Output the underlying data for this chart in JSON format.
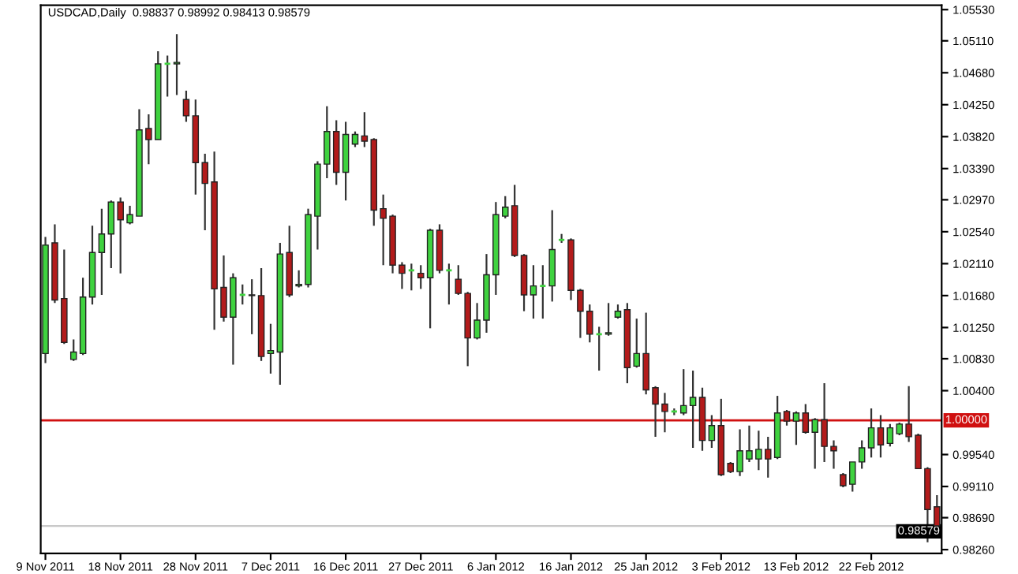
{
  "chart_data": {
    "type": "candlestick",
    "title": "USDCAD,Daily  0.98837 0.98992 0.98413 0.98579",
    "categories": [
      "9 Nov 2011",
      null,
      null,
      null,
      null,
      null,
      null,
      null,
      "18 Nov 2011",
      null,
      null,
      null,
      null,
      null,
      null,
      null,
      "28 Nov 2011",
      null,
      null,
      null,
      null,
      null,
      null,
      null,
      "7 Dec 2011",
      null,
      null,
      null,
      null,
      null,
      null,
      null,
      "16 Dec 2011",
      null,
      null,
      null,
      null,
      null,
      null,
      null,
      "27 Dec 2011",
      null,
      null,
      null,
      null,
      null,
      null,
      null,
      "6 Jan 2012",
      null,
      null,
      null,
      null,
      null,
      null,
      null,
      "16 Jan 2012",
      null,
      null,
      null,
      null,
      null,
      null,
      null,
      "25 Jan 2012",
      null,
      null,
      null,
      null,
      null,
      null,
      null,
      "3 Feb 2012",
      null,
      null,
      null,
      null,
      null,
      null,
      null,
      "13 Feb 2012",
      null,
      null,
      null,
      null,
      null,
      null,
      null,
      "22 Feb 2012",
      null,
      null,
      null,
      null,
      null,
      null,
      null
    ],
    "ohlc": [
      [
        1.009,
        1.0247,
        1.0077,
        1.0236
      ],
      [
        1.0239,
        1.0264,
        1.0158,
        1.0162
      ],
      [
        1.0164,
        1.023,
        1.0103,
        1.0105
      ],
      [
        1.0082,
        1.0109,
        1.008,
        1.0092
      ],
      [
        1.009,
        1.0192,
        1.0088,
        1.0166
      ],
      [
        1.0166,
        1.0262,
        1.0156,
        1.0226
      ],
      [
        1.0226,
        1.0285,
        1.0169,
        1.0251
      ],
      [
        1.0251,
        1.0296,
        1.0205,
        1.0294
      ],
      [
        1.0294,
        1.03,
        1.0198,
        1.027
      ],
      [
        1.0266,
        1.0289,
        1.0264,
        1.0277
      ],
      [
        1.0275,
        1.0419,
        1.0275,
        1.0391
      ],
      [
        1.0393,
        1.0412,
        1.0345,
        1.0378
      ],
      [
        1.0378,
        1.0497,
        1.0378,
        1.048
      ],
      [
        1.048,
        1.0491,
        1.0436,
        1.048
      ],
      [
        1.048,
        1.052,
        1.0438,
        1.0482
      ],
      [
        1.0432,
        1.0444,
        1.0402,
        1.041
      ],
      [
        1.041,
        1.0432,
        1.0304,
        1.0347
      ],
      [
        1.0347,
        1.0359,
        1.0256,
        1.0319
      ],
      [
        1.0321,
        1.0362,
        1.0122,
        1.0177
      ],
      [
        1.0179,
        1.0222,
        1.0133,
        1.0139
      ],
      [
        1.0139,
        1.0198,
        1.0075,
        1.0192
      ],
      [
        1.0169,
        1.0183,
        1.0156,
        1.0169
      ],
      [
        1.0169,
        1.019,
        1.0116,
        1.0168
      ],
      [
        1.0168,
        1.0205,
        1.008,
        1.0086
      ],
      [
        1.009,
        1.013,
        1.0063,
        1.0094
      ],
      [
        1.0092,
        1.0239,
        1.0048,
        1.0224
      ],
      [
        1.0226,
        1.0262,
        1.0166,
        1.0169
      ],
      [
        1.0181,
        1.0202,
        1.0179,
        1.0183
      ],
      [
        1.0183,
        1.0285,
        1.0179,
        1.0277
      ],
      [
        1.0275,
        1.0349,
        1.023,
        1.0345
      ],
      [
        1.0345,
        1.0423,
        1.0326,
        1.0389
      ],
      [
        1.0389,
        1.0404,
        1.0317,
        1.0334
      ],
      [
        1.0334,
        1.0402,
        1.0296,
        1.0385
      ],
      [
        1.0372,
        1.0389,
        1.0368,
        1.0385
      ],
      [
        1.0383,
        1.0415,
        1.0368,
        1.0376
      ],
      [
        1.0378,
        1.038,
        1.0262,
        1.0283
      ],
      [
        1.0285,
        1.0304,
        1.0209,
        1.0272
      ],
      [
        1.0275,
        1.0277,
        1.0198,
        1.0209
      ],
      [
        1.0209,
        1.0213,
        1.0177,
        1.0198
      ],
      [
        1.0202,
        1.0211,
        1.0175,
        1.0202
      ],
      [
        1.0198,
        1.0209,
        1.0177,
        1.0192
      ],
      [
        1.0192,
        1.0258,
        1.0124,
        1.0256
      ],
      [
        1.0256,
        1.0264,
        1.0198,
        1.0202
      ],
      [
        1.0202,
        1.0211,
        1.0156,
        1.0202
      ],
      [
        1.019,
        1.0209,
        1.0169,
        1.0171
      ],
      [
        1.0171,
        1.0173,
        1.0073,
        1.0111
      ],
      [
        1.0111,
        1.0158,
        1.0109,
        1.0135
      ],
      [
        1.0135,
        1.0224,
        1.0118,
        1.0196
      ],
      [
        1.0196,
        1.0294,
        1.0169,
        1.0277
      ],
      [
        1.0275,
        1.0302,
        1.0272,
        1.0287
      ],
      [
        1.0289,
        1.0317,
        1.022,
        1.0222
      ],
      [
        1.0222,
        1.0224,
        1.0147,
        1.0169
      ],
      [
        1.0169,
        1.0209,
        1.0137,
        1.0181
      ],
      [
        1.0181,
        1.0209,
        1.0137,
        1.0181
      ],
      [
        1.0181,
        1.0283,
        1.016,
        1.023
      ],
      [
        1.0243,
        1.0251,
        1.0239,
        1.0243
      ],
      [
        1.0243,
        1.0245,
        1.0162,
        1.0175
      ],
      [
        1.0175,
        1.0177,
        1.0111,
        1.0147
      ],
      [
        1.0147,
        1.0156,
        1.0105,
        1.0116
      ],
      [
        1.0116,
        1.0126,
        1.0067,
        1.0116
      ],
      [
        1.0116,
        1.0158,
        1.0114,
        1.0118
      ],
      [
        1.0139,
        1.0156,
        1.0137,
        1.0147
      ],
      [
        1.0149,
        1.0158,
        1.005,
        1.0071
      ],
      [
        1.0073,
        1.0137,
        1.0071,
        1.009
      ],
      [
        1.009,
        1.0145,
        1.0035,
        1.0041
      ],
      [
        1.0044,
        1.0046,
        0.9978,
        1.0022
      ],
      [
        1.0022,
        1.0037,
        0.9984,
        1.0012
      ],
      [
        1.0012,
        1.0016,
        1.0007,
        1.0012
      ],
      [
        1.001,
        1.0069,
        1.0007,
        1.002
      ],
      [
        1.002,
        1.0067,
        0.9963,
        1.0031
      ],
      [
        1.0031,
        1.0044,
        0.9959,
        0.9973
      ],
      [
        0.9973,
        1.0007,
        0.9963,
        0.9993
      ],
      [
        0.9993,
        1.0029,
        0.9925,
        0.9927
      ],
      [
        0.9942,
        0.9944,
        0.9929,
        0.9931
      ],
      [
        0.9931,
        0.9988,
        0.9925,
        0.9959
      ],
      [
        0.9948,
        0.9993,
        0.9944,
        0.9959
      ],
      [
        0.9948,
        0.9986,
        0.9933,
        0.9961
      ],
      [
        0.9961,
        0.9978,
        0.9923,
        0.9948
      ],
      [
        0.995,
        1.0033,
        0.9948,
        1.001
      ],
      [
        1.0012,
        1.0014,
        0.9993,
        0.9999
      ],
      [
        0.9999,
        1.0012,
        0.9967,
        1.001
      ],
      [
        1.001,
        1.0022,
        0.9982,
        0.9984
      ],
      [
        0.9984,
        1.0003,
        0.9935,
        1.0001
      ],
      [
        1.0001,
        1.005,
        0.9944,
        0.9965
      ],
      [
        0.9965,
        0.9973,
        0.9935,
        0.9959
      ],
      [
        0.9927,
        0.9929,
        0.991,
        0.9912
      ],
      [
        0.9914,
        0.9944,
        0.9904,
        0.9944
      ],
      [
        0.9944,
        0.9973,
        0.9935,
        0.9963
      ],
      [
        0.9963,
        1.0016,
        0.995,
        0.999
      ],
      [
        0.999,
        1.0007,
        0.995,
        0.9967
      ],
      [
        0.9969,
        0.9995,
        0.9965,
        0.999
      ],
      [
        0.9982,
        0.9997,
        0.998,
        0.9995
      ],
      [
        0.9995,
        1.0046,
        0.9971,
        0.9978
      ],
      [
        0.998,
        0.9982,
        0.9935,
        0.9935
      ],
      [
        0.9935,
        0.9937,
        0.9836,
        0.988
      ],
      [
        0.98837,
        0.98992,
        0.98413,
        0.98579
      ]
    ],
    "colors": [
      "#3fd23f",
      "#b31b1b",
      "#b31b1b",
      "#3fd23f",
      "#3fd23f",
      "#3fd23f",
      "#3fd23f",
      "#3fd23f",
      "#b31b1b",
      "#3fd23f",
      "#3fd23f",
      "#b31b1b",
      "#3fd23f",
      "#3fd23f",
      "#3fd23f",
      "#b31b1b",
      "#b31b1b",
      "#b31b1b",
      "#b31b1b",
      "#b31b1b",
      "#3fd23f",
      "#3fd23f",
      "#b31b1b",
      "#b31b1b",
      "#3fd23f",
      "#3fd23f",
      "#b31b1b",
      "#3fd23f",
      "#3fd23f",
      "#3fd23f",
      "#3fd23f",
      "#b31b1b",
      "#3fd23f",
      "#3fd23f",
      "#b31b1b",
      "#b31b1b",
      "#b31b1b",
      "#b31b1b",
      "#b31b1b",
      "#3fd23f",
      "#b31b1b",
      "#3fd23f",
      "#b31b1b",
      "#3fd23f",
      "#b31b1b",
      "#b31b1b",
      "#3fd23f",
      "#3fd23f",
      "#3fd23f",
      "#3fd23f",
      "#b31b1b",
      "#b31b1b",
      "#3fd23f",
      "#3fd23f",
      "#3fd23f",
      "#3fd23f",
      "#b31b1b",
      "#b31b1b",
      "#b31b1b",
      "#3fd23f",
      "#3fd23f",
      "#3fd23f",
      "#b31b1b",
      "#3fd23f",
      "#b31b1b",
      "#b31b1b",
      "#b31b1b",
      "#3fd23f",
      "#3fd23f",
      "#3fd23f",
      "#b31b1b",
      "#3fd23f",
      "#b31b1b",
      "#b31b1b",
      "#3fd23f",
      "#3fd23f",
      "#3fd23f",
      "#b31b1b",
      "#3fd23f",
      "#b31b1b",
      "#3fd23f",
      "#b31b1b",
      "#3fd23f",
      "#b31b1b",
      "#b31b1b",
      "#b31b1b",
      "#3fd23f",
      "#3fd23f",
      "#3fd23f",
      "#b31b1b",
      "#3fd23f",
      "#3fd23f",
      "#b31b1b",
      "#b31b1b",
      "#b31b1b",
      "#b31b1b"
    ],
    "ylim": [
      0.9821,
      1.0559
    ],
    "yticks": [
      {
        "value": 1.0553,
        "label": "1.05530"
      },
      {
        "value": 1.0511,
        "label": "1.05110"
      },
      {
        "value": 1.0468,
        "label": "1.04680"
      },
      {
        "value": 1.0425,
        "label": "1.04250"
      },
      {
        "value": 1.0382,
        "label": "1.03820"
      },
      {
        "value": 1.0339,
        "label": "1.03390"
      },
      {
        "value": 1.0297,
        "label": "1.02970"
      },
      {
        "value": 1.0254,
        "label": "1.02540"
      },
      {
        "value": 1.0211,
        "label": "1.02110"
      },
      {
        "value": 1.0168,
        "label": "1.01680"
      },
      {
        "value": 1.0125,
        "label": "1.01250"
      },
      {
        "value": 1.0083,
        "label": "1.00830"
      },
      {
        "value": 1.004,
        "label": "1.00400"
      },
      {
        "value": 0.9954,
        "label": "0.99540"
      },
      {
        "value": 0.9911,
        "label": "0.99110"
      },
      {
        "value": 0.9869,
        "label": "0.98690"
      },
      {
        "value": 0.9826,
        "label": "0.98260"
      }
    ],
    "ref_lines": [
      {
        "axis": "y",
        "value": 1.0,
        "label": "1.00000",
        "color": "#d01010"
      },
      {
        "axis": "y",
        "value": 0.98579,
        "label": "0.98579",
        "color": "#c8c8c8"
      }
    ],
    "grid": false
  }
}
